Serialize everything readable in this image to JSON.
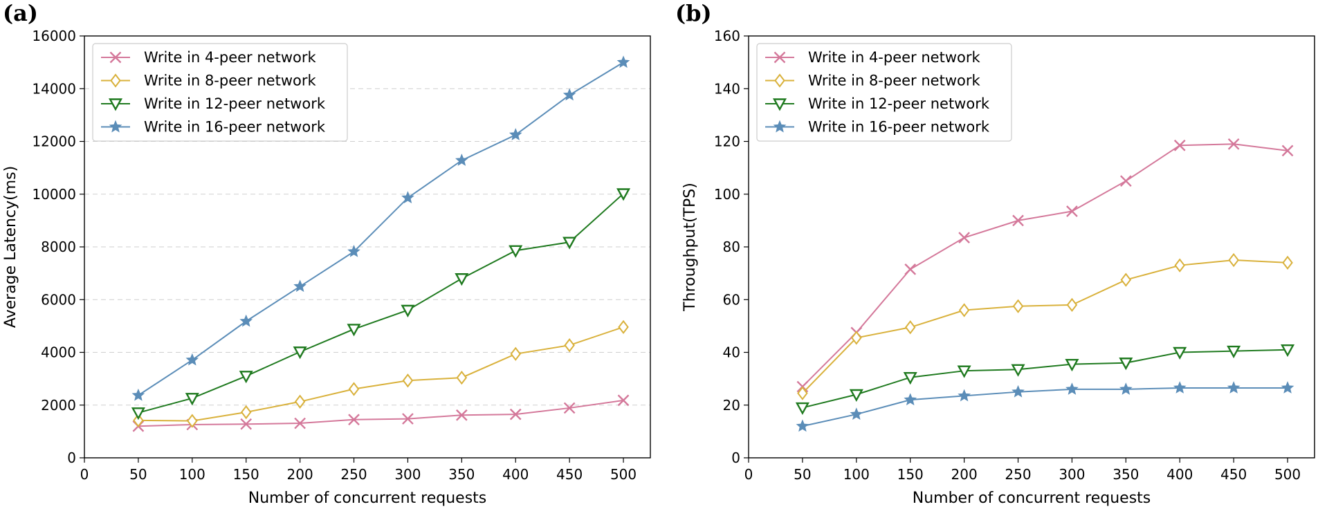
{
  "chart_data": [
    {
      "type": "line",
      "panel_label": "(a)",
      "xlabel": "Number of concurrent requests",
      "ylabel": "Average Latency(ms)",
      "xlim": [
        0,
        525
      ],
      "ylim": [
        0,
        16000
      ],
      "xticks": [
        0,
        50,
        100,
        150,
        200,
        250,
        300,
        350,
        400,
        450,
        500
      ],
      "yticks": [
        0,
        2000,
        4000,
        6000,
        8000,
        10000,
        12000,
        14000,
        16000
      ],
      "grid": "horizontal dashed",
      "legend_position": "top-left",
      "x": [
        50,
        100,
        150,
        200,
        250,
        300,
        350,
        400,
        450,
        500
      ],
      "series": [
        {
          "name": "Write in 4-peer network",
          "marker": "x",
          "color": "#d4789a",
          "values": [
            1200,
            1260,
            1280,
            1310,
            1450,
            1480,
            1620,
            1650,
            1890,
            2180
          ]
        },
        {
          "name": "Write in 8-peer network",
          "marker": "diamond",
          "color": "#d9b13b",
          "values": [
            1420,
            1400,
            1730,
            2130,
            2610,
            2930,
            3040,
            3940,
            4270,
            4960
          ]
        },
        {
          "name": "Write in 12-peer network",
          "marker": "triangle-down",
          "color": "#1f7a1f",
          "values": [
            1710,
            2260,
            3100,
            4020,
            4880,
            5600,
            6800,
            7860,
            8180,
            10020
          ]
        },
        {
          "name": "Write in 16-peer network",
          "marker": "star",
          "color": "#5b8db8",
          "values": [
            2370,
            3710,
            5180,
            6500,
            7820,
            9860,
            11280,
            12250,
            13760,
            15000
          ]
        }
      ]
    },
    {
      "type": "line",
      "panel_label": "(b)",
      "xlabel": "Number of concurrent requests",
      "ylabel": "Throughput(TPS)",
      "xlim": [
        0,
        525
      ],
      "ylim": [
        0,
        160
      ],
      "xticks": [
        0,
        50,
        100,
        150,
        200,
        250,
        300,
        350,
        400,
        450,
        500
      ],
      "yticks": [
        0,
        20,
        40,
        60,
        80,
        100,
        120,
        140,
        160
      ],
      "grid": "none",
      "legend_position": "top-left",
      "x": [
        50,
        100,
        150,
        200,
        250,
        300,
        350,
        400,
        450,
        500
      ],
      "series": [
        {
          "name": "Write in 4-peer network",
          "marker": "x",
          "color": "#d4789a",
          "values": [
            27.0,
            47.5,
            71.5,
            83.5,
            90.0,
            93.5,
            105.0,
            118.5,
            119.0,
            116.5
          ]
        },
        {
          "name": "Write in 8-peer network",
          "marker": "diamond",
          "color": "#d9b13b",
          "values": [
            24.5,
            45.5,
            49.5,
            56.0,
            57.5,
            58.0,
            67.5,
            73.0,
            75.0,
            74.0
          ]
        },
        {
          "name": "Write in 12-peer network",
          "marker": "triangle-down",
          "color": "#1f7a1f",
          "values": [
            19.0,
            24.0,
            30.5,
            33.0,
            33.5,
            35.5,
            36.0,
            40.0,
            40.5,
            41.0
          ]
        },
        {
          "name": "Write in 16-peer network",
          "marker": "star",
          "color": "#5b8db8",
          "values": [
            12.0,
            16.5,
            22.0,
            23.5,
            25.0,
            26.0,
            26.0,
            26.5,
            26.5,
            26.5
          ]
        }
      ]
    }
  ]
}
